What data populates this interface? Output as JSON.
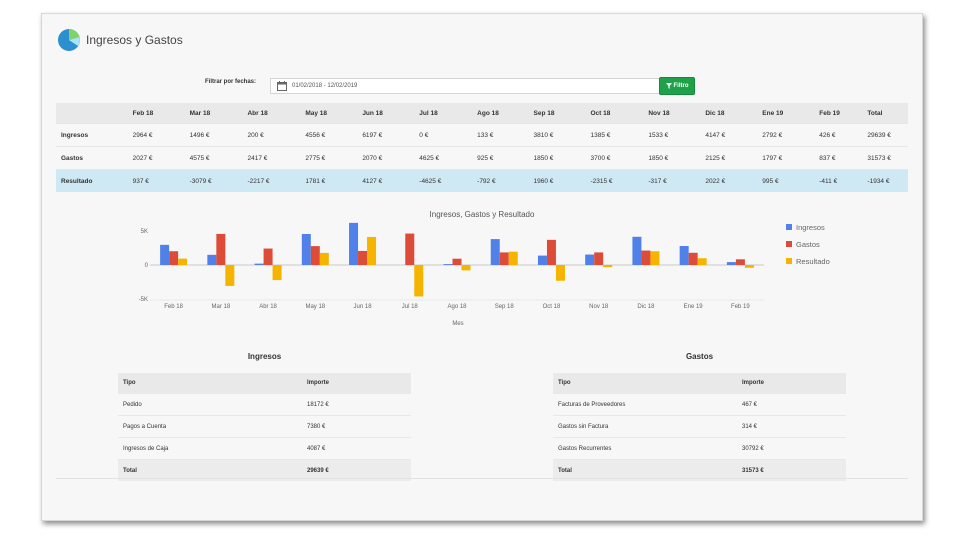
{
  "page": {
    "title": "Ingresos y Gastos"
  },
  "filter": {
    "label": "Filtrar por fechas:",
    "date_range": "01/02/2018 - 12/02/2019",
    "button_label": "Filtro"
  },
  "summary": {
    "headers": [
      "",
      "Feb 18",
      "Mar 18",
      "Abr 18",
      "May 18",
      "Jun 18",
      "Jul 18",
      "Ago 18",
      "Sep 18",
      "Oct 18",
      "Nov 18",
      "Dic 18",
      "Ene 19",
      "Feb 19",
      "Total"
    ],
    "rows": [
      {
        "label": "Ingresos",
        "cells": [
          "2964 €",
          "1496 €",
          "200 €",
          "4556 €",
          "6197 €",
          "0 €",
          "133 €",
          "3810 €",
          "1385 €",
          "1533 €",
          "4147 €",
          "2792 €",
          "426 €",
          "29639 €"
        ]
      },
      {
        "label": "Gastos",
        "cells": [
          "2027 €",
          "4575 €",
          "2417 €",
          "2775 €",
          "2070 €",
          "4625 €",
          "925 €",
          "1850 €",
          "3700 €",
          "1850 €",
          "2125 €",
          "1797 €",
          "837 €",
          "31573 €"
        ]
      },
      {
        "label": "Resultado",
        "cells": [
          "937 €",
          "-3079 €",
          "-2217 €",
          "1781 €",
          "4127 €",
          "-4625 €",
          "-792 €",
          "1960 €",
          "-2315 €",
          "-317 €",
          "2022 €",
          "995 €",
          "-411 €",
          "-1934 €"
        ]
      }
    ]
  },
  "chart_data": {
    "type": "bar",
    "title": "Ingresos, Gastos y Resultado",
    "xlabel": "Mes",
    "ylabel": "",
    "categories": [
      "Feb 18",
      "Mar 18",
      "Abr 18",
      "May 18",
      "Jun 18",
      "Jul 18",
      "Ago 18",
      "Sep 18",
      "Oct 18",
      "Nov 18",
      "Dic 18",
      "Ene 19",
      "Feb 19"
    ],
    "series": [
      {
        "name": "Ingresos",
        "color": "#4f81e8",
        "values": [
          2964,
          1496,
          200,
          4556,
          6197,
          0,
          133,
          3810,
          1385,
          1533,
          4147,
          2792,
          426
        ]
      },
      {
        "name": "Gastos",
        "color": "#dd4b39",
        "values": [
          2027,
          4575,
          2417,
          2775,
          2070,
          4625,
          925,
          1850,
          3700,
          1850,
          2125,
          1797,
          837
        ]
      },
      {
        "name": "Resultado",
        "color": "#f4b400",
        "values": [
          937,
          -3079,
          -2217,
          1781,
          4127,
          -4625,
          -792,
          1960,
          -2315,
          -317,
          2022,
          995,
          -411
        ]
      }
    ],
    "ylim": [
      -5000,
      5000
    ],
    "yticks": [
      "5K",
      "0",
      "-5K"
    ],
    "ytick_values": [
      5000,
      0,
      -5000
    ],
    "grid": false,
    "legend": "right"
  },
  "ingresos_table": {
    "title": "Ingresos",
    "headers": [
      "Tipo",
      "Importe"
    ],
    "rows": [
      [
        "Pedido",
        "18172 €"
      ],
      [
        "Pagos a Cuenta",
        "7380 €"
      ],
      [
        "Ingresos de Caja",
        "4087 €"
      ]
    ],
    "total": [
      "Total",
      "29639 €"
    ]
  },
  "gastos_table": {
    "title": "Gastos",
    "headers": [
      "Tipo",
      "Importe"
    ],
    "rows": [
      [
        "Facturas de Proveedores",
        "467 €"
      ],
      [
        "Gastos sin Factura",
        "314 €"
      ],
      [
        "Gastos Recurrentes",
        "30792 €"
      ]
    ],
    "total": [
      "Total",
      "31573 €"
    ]
  }
}
